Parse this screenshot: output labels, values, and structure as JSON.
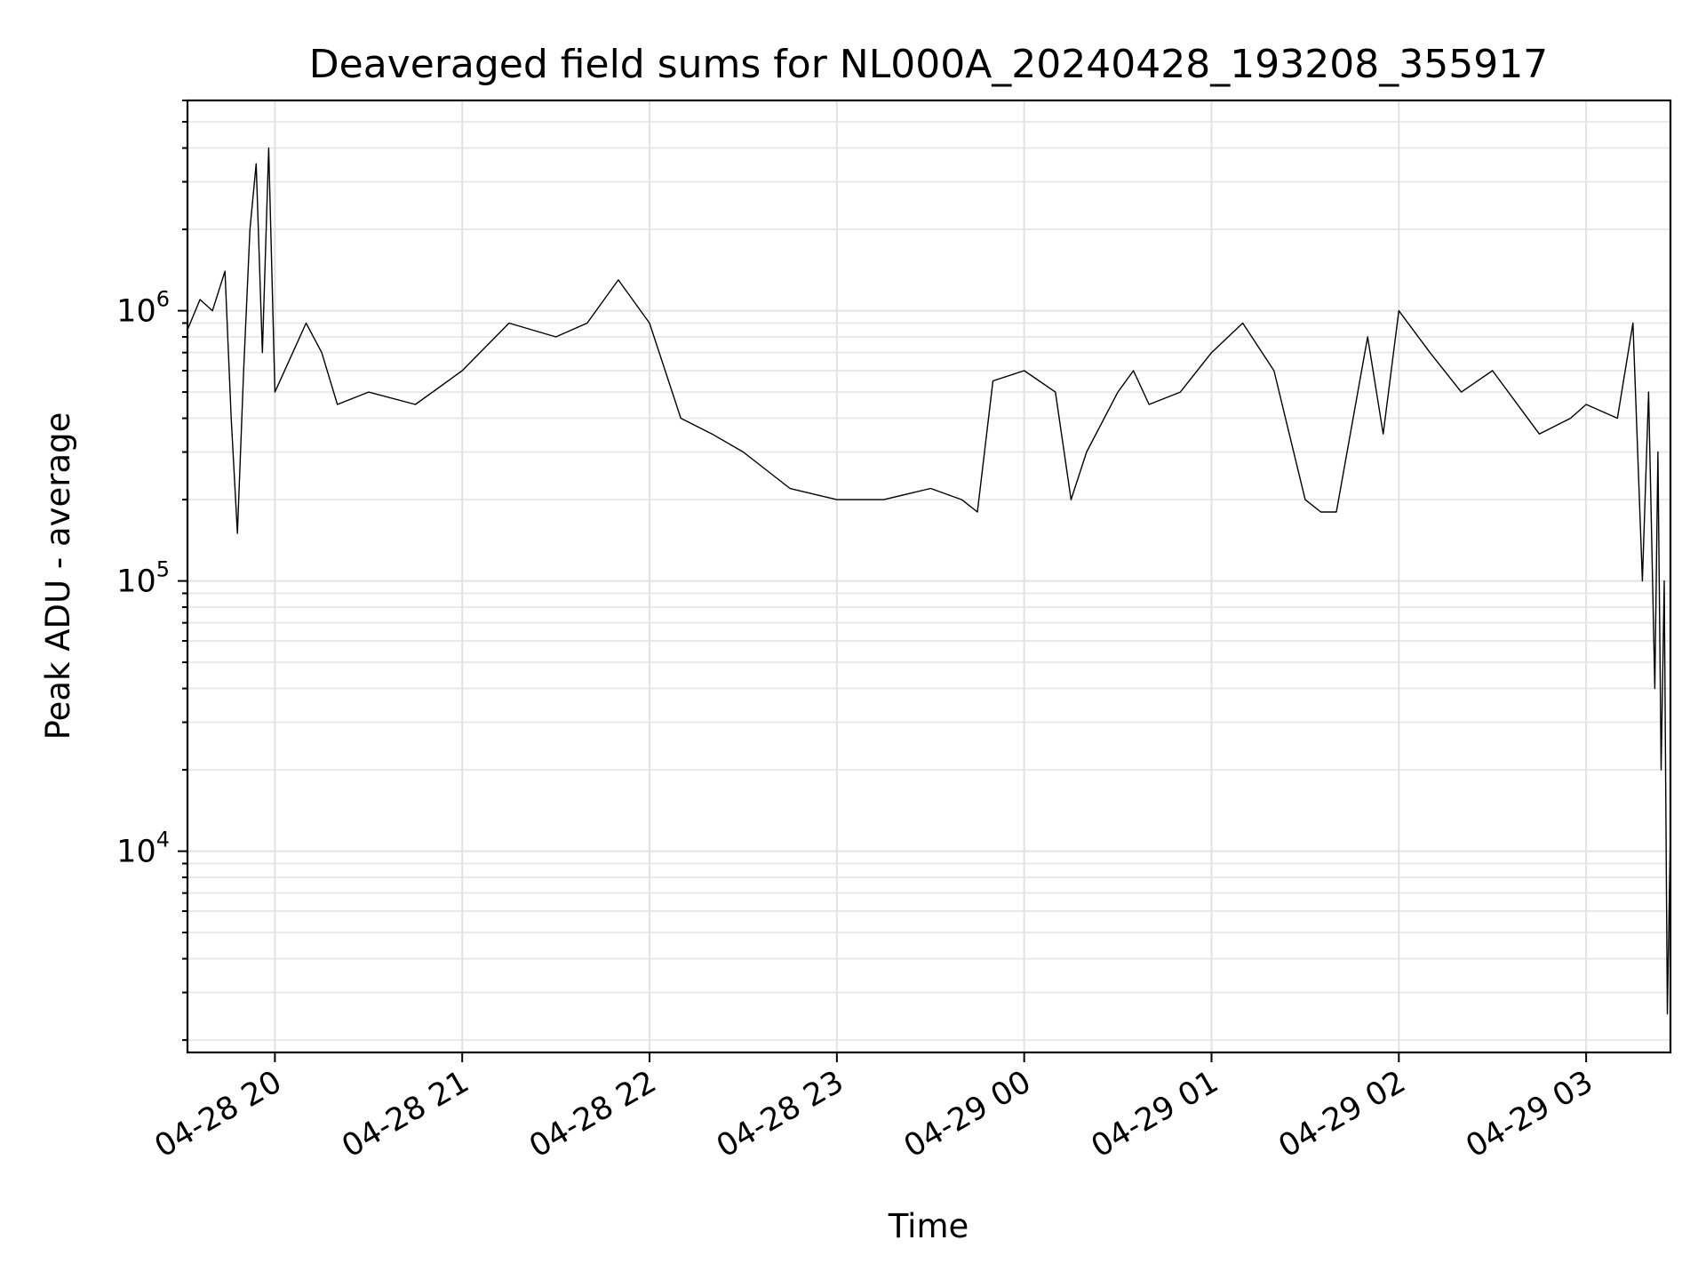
{
  "chart_data": {
    "type": "line",
    "title": "Deaveraged field sums for NL000A_20240428_193208_355917",
    "xlabel": "Time",
    "ylabel": "Peak ADU - average",
    "yscale": "log",
    "ylim": [
      1800,
      6000000
    ],
    "xlim": [
      "2024-04-28 19:32",
      "2024-04-29 03:27"
    ],
    "grid": true,
    "line_color": "#000000",
    "x_ticks": [
      {
        "value": "2024-04-28 20:00",
        "label": "04-28 20"
      },
      {
        "value": "2024-04-28 21:00",
        "label": "04-28 21"
      },
      {
        "value": "2024-04-28 22:00",
        "label": "04-28 22"
      },
      {
        "value": "2024-04-28 23:00",
        "label": "04-28 23"
      },
      {
        "value": "2024-04-29 00:00",
        "label": "04-29 00"
      },
      {
        "value": "2024-04-29 01:00",
        "label": "04-29 01"
      },
      {
        "value": "2024-04-29 02:00",
        "label": "04-29 02"
      },
      {
        "value": "2024-04-29 03:00",
        "label": "04-29 03"
      }
    ],
    "y_ticks": [
      {
        "value": 10000,
        "base": "10",
        "exp": "4"
      },
      {
        "value": 100000,
        "base": "10",
        "exp": "5"
      },
      {
        "value": 1000000,
        "base": "10",
        "exp": "6"
      }
    ],
    "series": [
      {
        "x": [
          "2024-04-28 19:32",
          "2024-04-28 19:36",
          "2024-04-28 19:40",
          "2024-04-28 19:44",
          "2024-04-28 19:46",
          "2024-04-28 19:48",
          "2024-04-28 19:50",
          "2024-04-28 19:52",
          "2024-04-28 19:54",
          "2024-04-28 19:56",
          "2024-04-28 19:58",
          "2024-04-28 20:00",
          "2024-04-28 20:10",
          "2024-04-28 20:15",
          "2024-04-28 20:20",
          "2024-04-28 20:30",
          "2024-04-28 20:45",
          "2024-04-28 21:00",
          "2024-04-28 21:15",
          "2024-04-28 21:30",
          "2024-04-28 21:40",
          "2024-04-28 21:50",
          "2024-04-28 22:00",
          "2024-04-28 22:10",
          "2024-04-28 22:20",
          "2024-04-28 22:30",
          "2024-04-28 22:45",
          "2024-04-28 23:00",
          "2024-04-28 23:15",
          "2024-04-28 23:30",
          "2024-04-28 23:40",
          "2024-04-28 23:45",
          "2024-04-28 23:50",
          "2024-04-29 00:00",
          "2024-04-29 00:10",
          "2024-04-29 00:15",
          "2024-04-29 00:20",
          "2024-04-29 00:30",
          "2024-04-29 00:35",
          "2024-04-29 00:40",
          "2024-04-29 00:50",
          "2024-04-29 01:00",
          "2024-04-29 01:10",
          "2024-04-29 01:20",
          "2024-04-29 01:30",
          "2024-04-29 01:35",
          "2024-04-29 01:40",
          "2024-04-29 01:50",
          "2024-04-29 01:55",
          "2024-04-29 02:00",
          "2024-04-29 02:10",
          "2024-04-29 02:20",
          "2024-04-29 02:30",
          "2024-04-29 02:45",
          "2024-04-29 02:55",
          "2024-04-29 03:00",
          "2024-04-29 03:10",
          "2024-04-29 03:15",
          "2024-04-29 03:18",
          "2024-04-29 03:20",
          "2024-04-29 03:22",
          "2024-04-29 03:23",
          "2024-04-29 03:24",
          "2024-04-29 03:25",
          "2024-04-29 03:26",
          "2024-04-29 03:27"
        ],
        "y": [
          850000,
          1100000,
          1000000,
          1400000,
          400000,
          150000,
          600000,
          2000000,
          3500000,
          700000,
          4000000,
          500000,
          900000,
          700000,
          450000,
          500000,
          450000,
          600000,
          900000,
          800000,
          900000,
          1300000,
          900000,
          400000,
          350000,
          300000,
          220000,
          200000,
          200000,
          220000,
          200000,
          180000,
          550000,
          600000,
          500000,
          200000,
          300000,
          500000,
          600000,
          450000,
          500000,
          700000,
          900000,
          600000,
          200000,
          180000,
          180000,
          800000,
          350000,
          1000000,
          700000,
          500000,
          600000,
          350000,
          400000,
          450000,
          400000,
          900000,
          100000,
          500000,
          40000,
          300000,
          20000,
          100000,
          2500,
          12000
        ]
      }
    ]
  }
}
